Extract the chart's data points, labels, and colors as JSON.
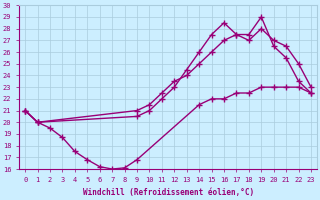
{
  "xlabel": "Windchill (Refroidissement éolien,°C)",
  "bg_color": "#cceeff",
  "grid_color": "#aaccdd",
  "line_color": "#990077",
  "xlim": [
    -0.5,
    23.5
  ],
  "ylim": [
    16,
    30
  ],
  "xticks": [
    0,
    1,
    2,
    3,
    4,
    5,
    6,
    7,
    8,
    9,
    10,
    11,
    12,
    13,
    14,
    15,
    16,
    17,
    18,
    19,
    20,
    21,
    22,
    23
  ],
  "yticks": [
    16,
    17,
    18,
    19,
    20,
    21,
    22,
    23,
    24,
    25,
    26,
    27,
    28,
    29,
    30
  ],
  "line1_x": [
    0,
    1,
    2,
    3,
    4,
    5,
    6,
    7,
    8,
    9,
    14,
    15,
    16,
    17,
    18,
    19,
    20,
    21,
    22,
    23
  ],
  "line1_y": [
    21,
    20,
    19.5,
    18.7,
    17.5,
    16.8,
    16.2,
    16.0,
    16.1,
    16.8,
    21.5,
    22.0,
    22.0,
    22.5,
    22.5,
    23.0,
    23.0,
    23.0,
    23.0,
    22.5
  ],
  "line2_x": [
    0,
    1,
    9,
    10,
    11,
    12,
    13,
    14,
    15,
    16,
    17,
    18,
    19,
    20,
    21,
    22,
    23
  ],
  "line2_y": [
    21,
    20,
    20.5,
    21.0,
    22.0,
    23.0,
    24.5,
    26.0,
    27.5,
    28.5,
    27.5,
    27.0,
    28.0,
    27.0,
    26.5,
    25.0,
    23.0
  ],
  "line3_x": [
    0,
    1,
    9,
    10,
    11,
    12,
    13,
    14,
    15,
    16,
    17,
    18,
    19,
    20,
    21,
    22,
    23
  ],
  "line3_y": [
    21,
    20,
    21.0,
    21.5,
    22.5,
    23.5,
    24.0,
    25.0,
    26.0,
    27.0,
    27.5,
    27.5,
    29.0,
    26.5,
    25.5,
    23.5,
    22.5
  ],
  "marker": "+",
  "markersize": 4,
  "linewidth": 1.0
}
